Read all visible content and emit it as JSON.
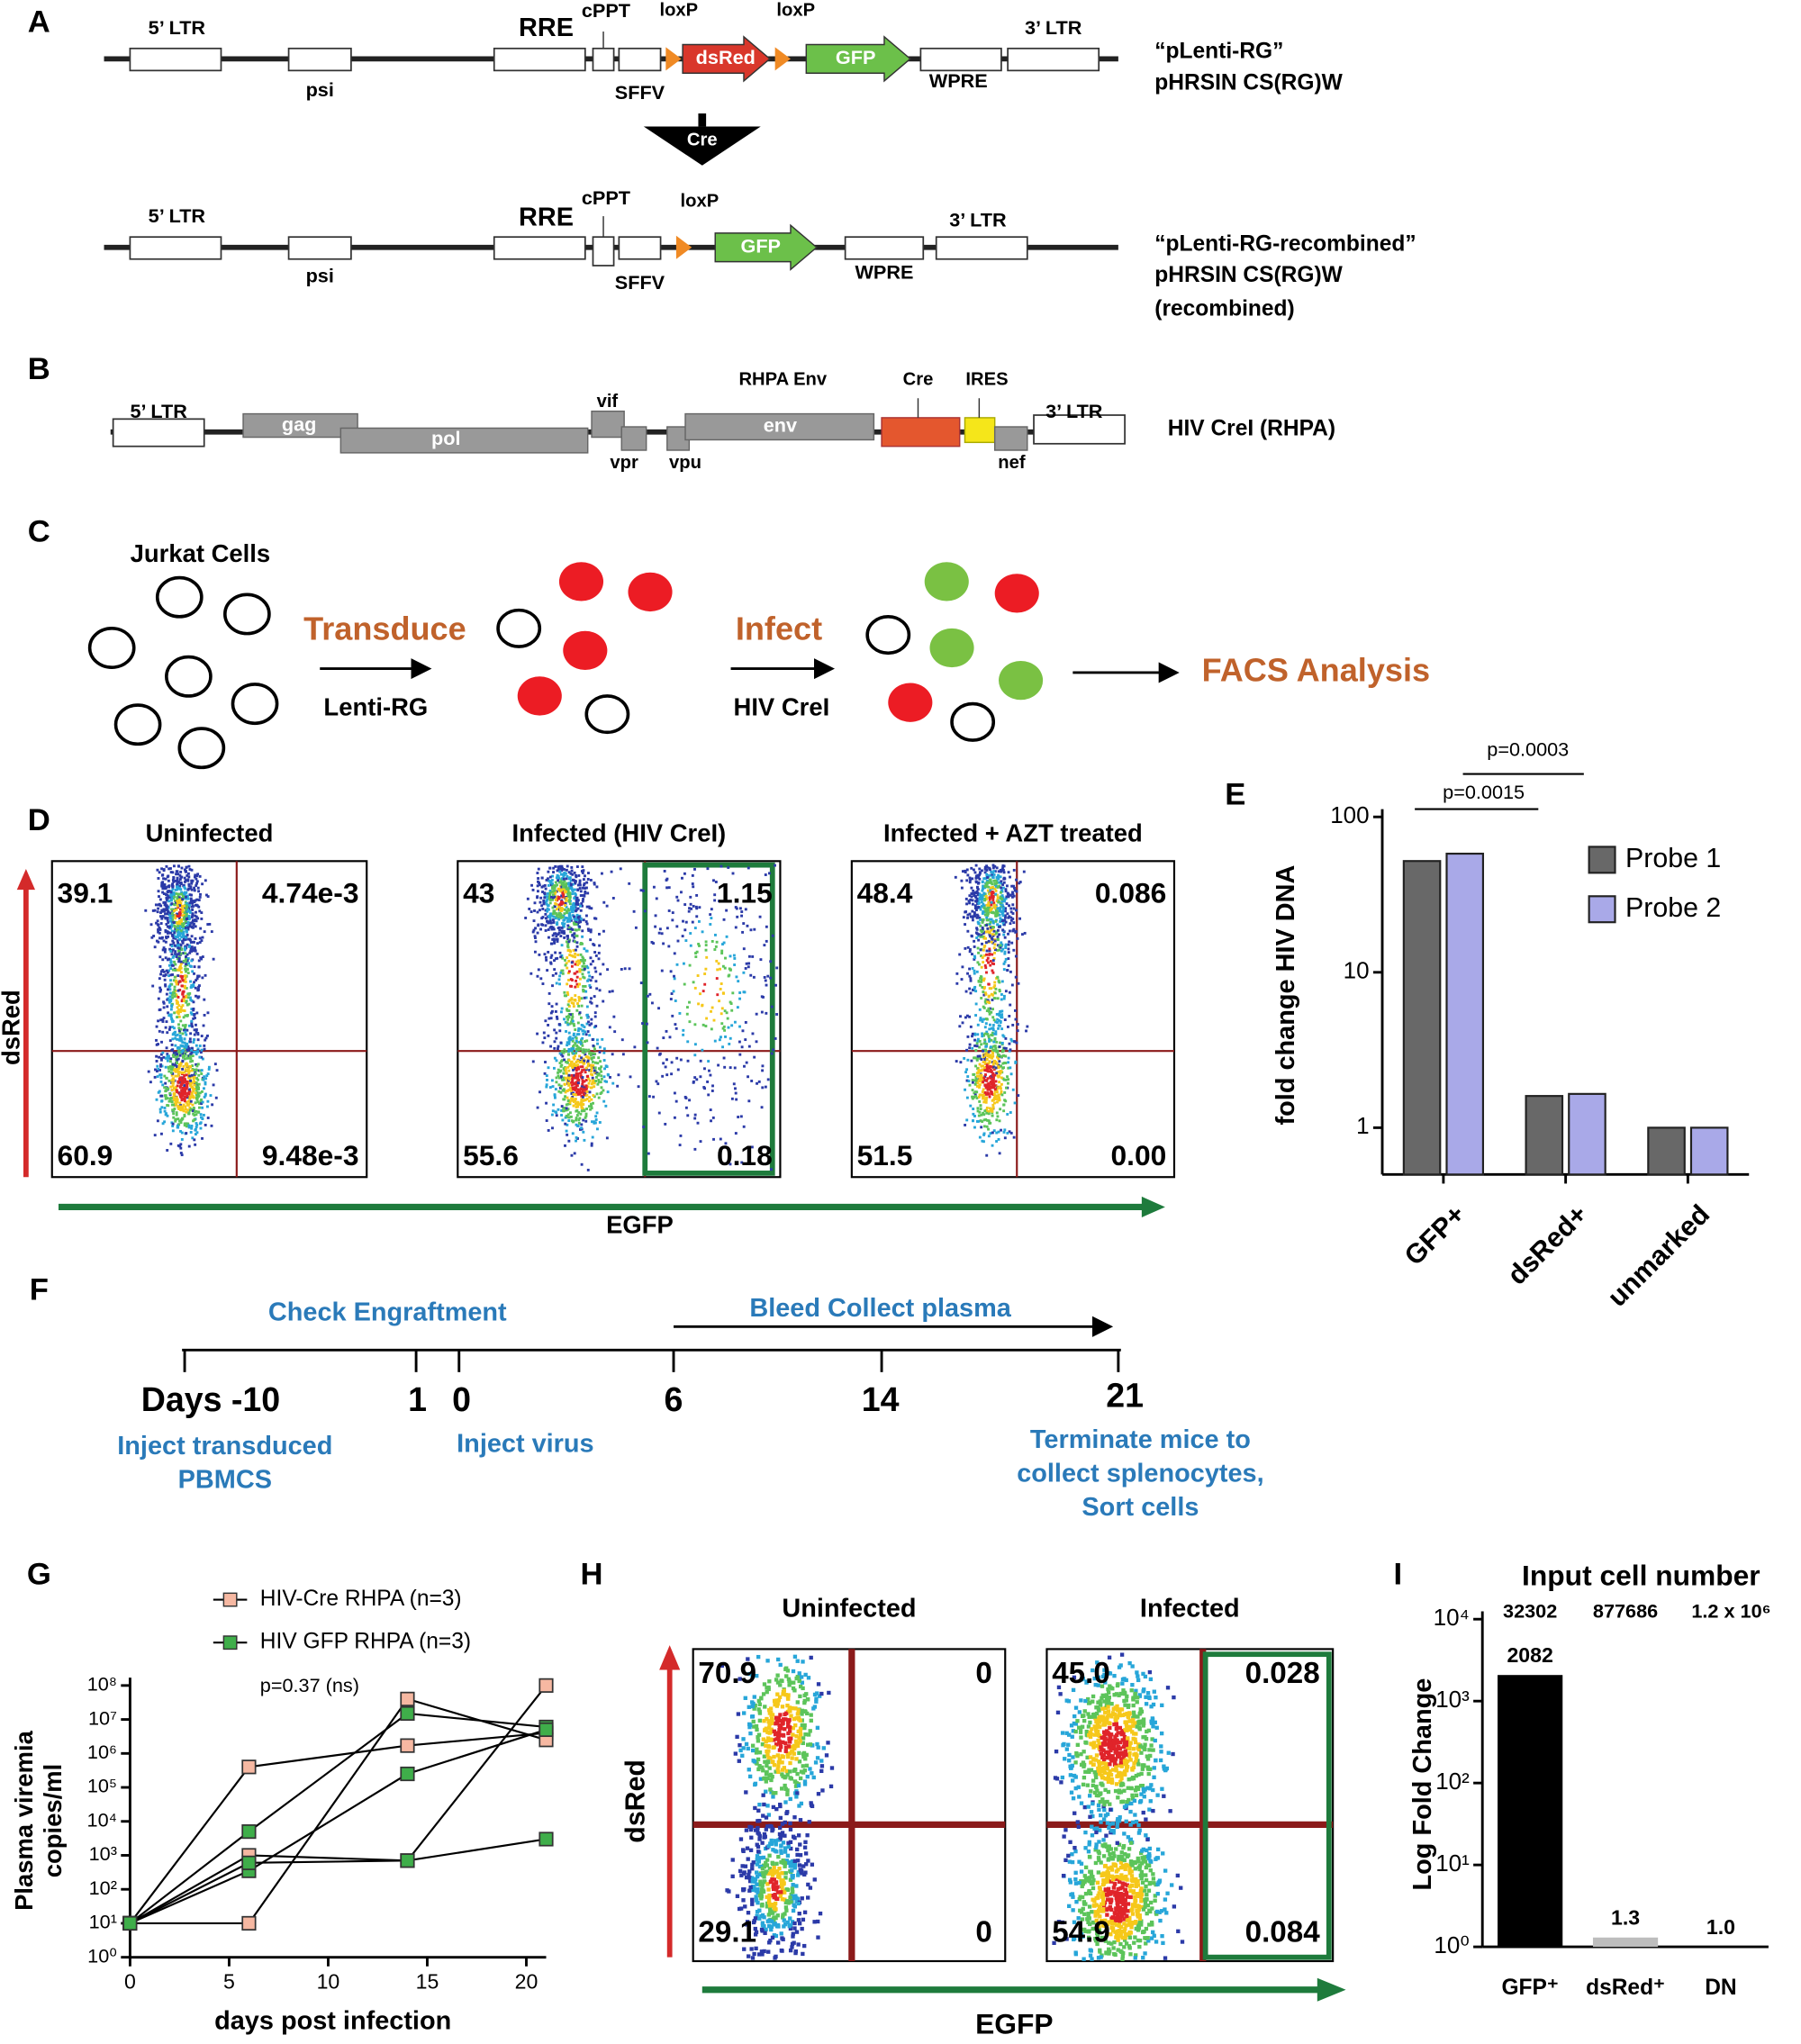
{
  "panel_labels": [
    "A",
    "B",
    "C",
    "D",
    "E",
    "F",
    "G",
    "H",
    "I"
  ],
  "panel_a": {
    "construct_1": {
      "elements": [
        "5’ LTR",
        "psi",
        "RRE",
        "cPPT",
        "SFFV",
        "loxP",
        "dsRed",
        "loxP",
        "GFP",
        "WPRE",
        "3’ LTR"
      ],
      "name": [
        "“pLenti-RG”",
        "pHRSIN CS(RG)W"
      ]
    },
    "enzyme": "Cre",
    "construct_2": {
      "elements": [
        "5’ LTR",
        "psi",
        "RRE",
        "cPPT",
        "SFFV",
        "loxP",
        "GFP",
        "WPRE",
        "3’ LTR"
      ],
      "name": [
        "“pLenti-RG-recombined”",
        "pHRSIN CS(RG)W",
        "(recombined)"
      ]
    }
  },
  "panel_b": {
    "elements": [
      "5’ LTR",
      "gag",
      "pol",
      "vif",
      "vpr",
      "vpu",
      "RHPA Env",
      "env",
      "Cre",
      "IRES",
      "nef",
      "3’ LTR"
    ],
    "name": "HIV CreI (RHPA)"
  },
  "panel_c": {
    "start": "Jurkat Cells",
    "step_1": "Transduce",
    "step_1_agent": "Lenti-RG",
    "step_2": "Infect",
    "step_2_agent": "HIV CreI",
    "end": "FACS Analysis"
  },
  "panel_d": {
    "y_label": "dsRed",
    "x_label": "EGFP",
    "plots": [
      {
        "title": "Uninfected",
        "quadrants": [
          "39.1",
          "4.74e-3",
          "60.9",
          "9.48e-3"
        ]
      },
      {
        "title": "Infected (HIV CreI)",
        "quadrants": [
          "43",
          "1.15",
          "55.6",
          "0.18"
        ]
      },
      {
        "title": "Infected + AZT treated",
        "quadrants": [
          "48.4",
          "0.086",
          "51.5",
          "0.00"
        ]
      }
    ]
  },
  "panel_f": {
    "above": [
      "Check Engraftment",
      "Bleed Collect plasma"
    ],
    "days": [
      "Days -10",
      "1",
      "0",
      "6",
      "14",
      "21"
    ],
    "inject_cells": [
      "Inject transduced",
      "PBMCS"
    ],
    "inject_virus": "Inject virus",
    "terminate": [
      "Terminate mice to",
      "collect splenocytes,",
      "Sort cells"
    ]
  },
  "panel_h": {
    "y_label": "dsRed",
    "x_label": "EGFP",
    "plots": [
      {
        "title": "Uninfected",
        "quadrants": [
          "70.9",
          "0",
          "29.1",
          "0"
        ]
      },
      {
        "title": "Infected",
        "quadrants": [
          "45.0",
          "0.028",
          "54.9",
          "0.084"
        ]
      }
    ]
  },
  "chart_data": [
    {
      "type": "bar",
      "log_scale": true,
      "y_label": "fold change HIV DNA",
      "categories": [
        "GFP+",
        "dsRed+",
        "unmarked"
      ],
      "series": [
        {
          "name": "Probe 1",
          "color": "#686868",
          "values": [
            52,
            1.6,
            1.0
          ]
        },
        {
          "name": "Probe 2",
          "color": "#a9a9e8",
          "values": [
            58,
            1.65,
            1.0
          ]
        }
      ],
      "ylim": [
        0.5,
        100
      ],
      "yticks": [
        1,
        10,
        100
      ],
      "legend": "upper right",
      "annotations": [
        "p=0.0015",
        "p=0.0003"
      ]
    },
    {
      "type": "line",
      "log_scale": true,
      "x_label": "days post infection",
      "y_label": [
        "Plasma viremia",
        "copies/ml"
      ],
      "x": [
        0,
        6,
        14,
        21
      ],
      "xlim": [
        0,
        21
      ],
      "xticks": [
        0,
        5,
        10,
        15,
        20
      ],
      "ylim": [
        1,
        100000000
      ],
      "yticks": [
        {
          "value": 1,
          "label": "10⁰"
        },
        {
          "value": 10,
          "label": "10¹"
        },
        {
          "value": 100,
          "label": "10²"
        },
        {
          "value": 1000,
          "label": "10³"
        },
        {
          "value": 10000,
          "label": "10⁴"
        },
        {
          "value": 100000,
          "label": "10⁵"
        },
        {
          "value": 1000000,
          "label": "10⁶"
        },
        {
          "value": 10000000,
          "label": "10⁷"
        },
        {
          "value": 100000000,
          "label": "10⁸"
        }
      ],
      "series": [
        {
          "name": "HIV-Cre RHPA (n=3)",
          "color": "#f6b8a2",
          "values": [
            [
              10,
              400000,
              1700000,
              4000000
            ],
            [
              10,
              10,
              40000000,
              2500000
            ],
            [
              10,
              1000,
              700,
              100000000
            ]
          ]
        },
        {
          "name": "HIV GFP RHPA (n=3)",
          "color": "#3fae4a",
          "values": [
            [
              10,
              5000,
              15000000,
              6000000
            ],
            [
              10,
              350,
              250000,
              5000000
            ],
            [
              10,
              600,
              700,
              3000
            ]
          ]
        }
      ],
      "legend": "upper left",
      "annotations": [
        "p=0.37 (ns)"
      ]
    },
    {
      "type": "bar",
      "log_scale": true,
      "title": "Input cell number",
      "input_cell_numbers": [
        "32302",
        "877686",
        "1.2 x 10⁶"
      ],
      "y_label": "Log Fold Change",
      "categories": [
        "GFP⁺",
        "dsRed⁺",
        "DN"
      ],
      "values": [
        2082,
        1.3,
        1.0
      ],
      "value_labels": [
        "2082",
        "1.3",
        "1.0"
      ],
      "colors": [
        "#000000",
        "#bdbdbd",
        "#bdbdbd"
      ],
      "ylim": [
        1,
        10000
      ],
      "yticks": [
        {
          "value": 1,
          "label": "10⁰"
        },
        {
          "value": 10,
          "label": "10¹"
        },
        {
          "value": 100,
          "label": "10²"
        },
        {
          "value": 1000,
          "label": "10³"
        },
        {
          "value": 10000,
          "label": "10⁴"
        }
      ]
    }
  ]
}
